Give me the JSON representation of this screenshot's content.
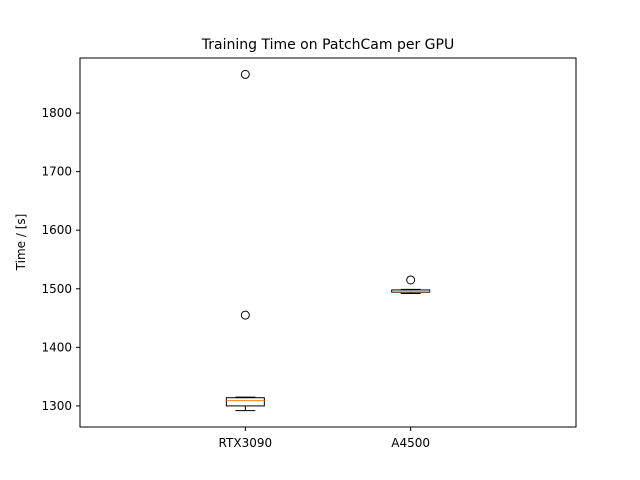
{
  "chart_data": {
    "type": "box",
    "title": "Training Time on PatchCam per GPU",
    "xlabel": "",
    "ylabel": "Time / [s]",
    "ylim": [
      1264,
      1894
    ],
    "yticks": [
      1300,
      1400,
      1500,
      1600,
      1700,
      1800
    ],
    "categories": [
      "RTX3090",
      "A4500"
    ],
    "boxes": [
      {
        "category": "RTX3090",
        "whisker_low": 1292,
        "q1": 1300,
        "median": 1309,
        "q3": 1314,
        "whisker_high": 1315,
        "outliers": [
          1455,
          1866
        ]
      },
      {
        "category": "A4500",
        "whisker_low": 1492,
        "q1": 1494,
        "median": 1495,
        "q3": 1498,
        "whisker_high": 1499,
        "outliers": [
          1515
        ]
      }
    ],
    "grid": false,
    "colors": {
      "box": "#000000",
      "median": "#ff7f0e",
      "outlier": "#000000"
    }
  }
}
